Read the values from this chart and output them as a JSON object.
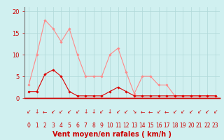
{
  "x": [
    0,
    1,
    2,
    3,
    4,
    5,
    6,
    7,
    8,
    9,
    10,
    11,
    12,
    13,
    14,
    15,
    16,
    17,
    18,
    19,
    20,
    21,
    22,
    23
  ],
  "y_rafales": [
    3,
    10,
    18,
    16,
    13,
    16,
    10,
    5,
    5,
    5,
    10,
    11.5,
    6,
    1,
    5,
    5,
    3,
    3,
    0.5,
    0.5,
    0.5,
    0.5,
    0.5,
    0.5
  ],
  "y_moyen": [
    1.5,
    1.5,
    5.5,
    6.5,
    5,
    1.5,
    0.5,
    0.5,
    0.5,
    0.5,
    1.5,
    2.5,
    1.5,
    0.5,
    0.5,
    0.5,
    0.5,
    0.5,
    0.5,
    0.5,
    0.5,
    0.5,
    0.5,
    0.5
  ],
  "line_color_rafales": "#ff8888",
  "line_color_moyen": "#dd0000",
  "marker_color_rafales": "#ff8888",
  "marker_color_moyen": "#dd0000",
  "bg_color": "#d0f0f0",
  "grid_color": "#b0d8d8",
  "axis_color": "#cc0000",
  "tick_color": "#cc0000",
  "xlabel": "Vent moyen/en rafales ( km/h )",
  "ylabel_ticks": [
    0,
    5,
    10,
    15,
    20
  ],
  "ylim": [
    0,
    21
  ],
  "xlim": [
    -0.5,
    23.5
  ]
}
